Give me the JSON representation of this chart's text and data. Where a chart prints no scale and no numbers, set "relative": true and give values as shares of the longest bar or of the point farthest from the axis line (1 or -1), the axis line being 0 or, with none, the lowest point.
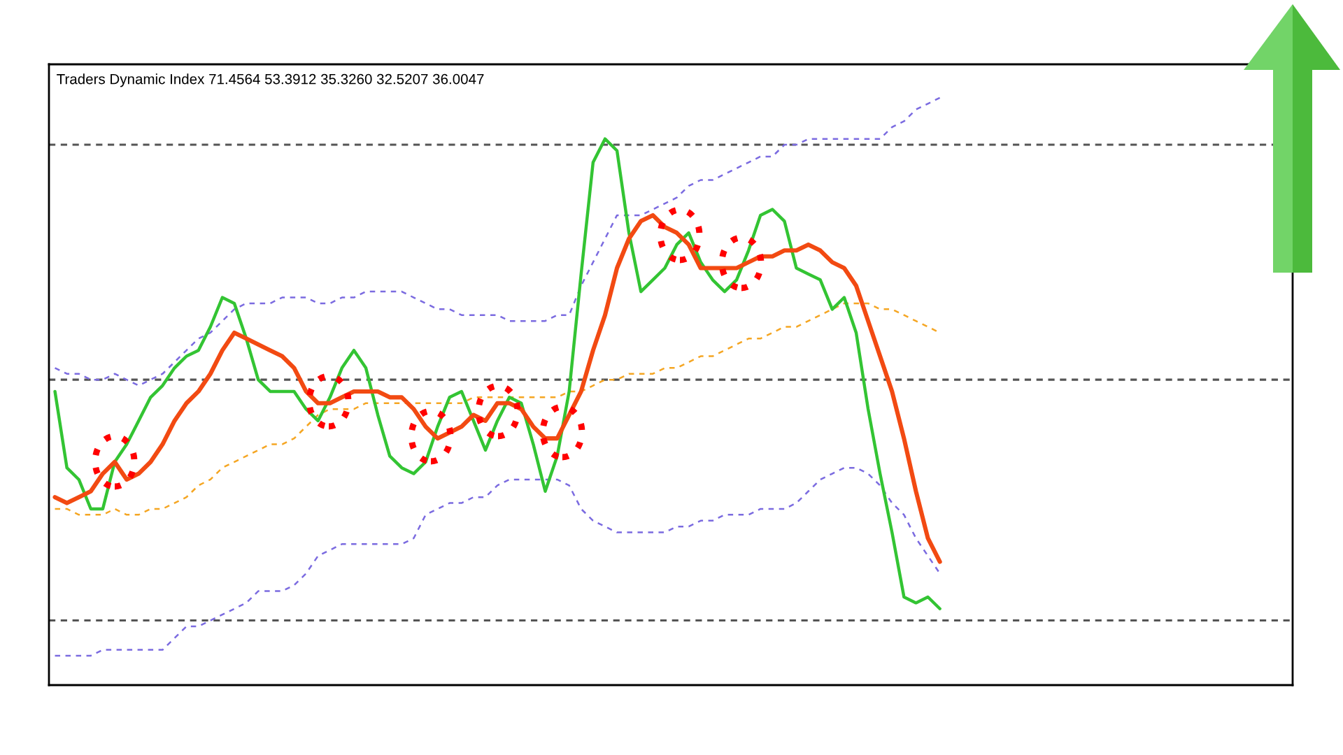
{
  "chart_data": {
    "type": "line",
    "title": "Traders Dynamic Index 71.4564 53.3912 35.3260 32.5207 36.0047",
    "relative": true,
    "categories": [
      null,
      null,
      null,
      null,
      null,
      null,
      null,
      null,
      null,
      null,
      null,
      null,
      null,
      null,
      null,
      null,
      null,
      null,
      null,
      null,
      null,
      null,
      null,
      null,
      null,
      null,
      null,
      null,
      null,
      null,
      null,
      null,
      null,
      null,
      null,
      null,
      null,
      null,
      null,
      null,
      null,
      null,
      null,
      null,
      null,
      null,
      null,
      null,
      null,
      null,
      null,
      null,
      null,
      null,
      null,
      null,
      null,
      null,
      null,
      null,
      null,
      null,
      null,
      null,
      null,
      null,
      null,
      null,
      null,
      null,
      null,
      null,
      null,
      null,
      null,
      null,
      null,
      null,
      null,
      null,
      null,
      null,
      null,
      null,
      null,
      null,
      null,
      null,
      null,
      null,
      null,
      null,
      null,
      null,
      null,
      null,
      null,
      null,
      null,
      null,
      null,
      null,
      null,
      null
    ],
    "ref_lines": [
      {
        "axis": "y",
        "value": 0.92,
        "color": "#555555",
        "line_style": "dashed"
      },
      {
        "axis": "y",
        "value": 0.52,
        "color": "#555555",
        "line_style": "dashed"
      },
      {
        "axis": "y",
        "value": 0.11,
        "color": "#555555",
        "line_style": "dashed"
      }
    ],
    "series": [
      {
        "color": "#7b6be0",
        "line_style": "dashed",
        "values": [
          0.54,
          0.53,
          0.53,
          0.52,
          0.52,
          0.53,
          0.52,
          0.51,
          0.52,
          0.53,
          0.55,
          0.57,
          0.59,
          0.6,
          0.62,
          0.64,
          0.65,
          0.65,
          0.65,
          0.66,
          0.66,
          0.66,
          0.65,
          0.65,
          0.66,
          0.66,
          0.67,
          0.67,
          0.67,
          0.67,
          0.66,
          0.65,
          0.64,
          0.64,
          0.63,
          0.63,
          0.63,
          0.63,
          0.62,
          0.62,
          0.62,
          0.62,
          0.63,
          0.63,
          0.68,
          0.72,
          0.76,
          0.8,
          0.8,
          0.8,
          0.81,
          0.82,
          0.83,
          0.85,
          0.86,
          0.86,
          0.87,
          0.88,
          0.89,
          0.9,
          0.9,
          0.92,
          0.92,
          0.93,
          0.93,
          0.93,
          0.93,
          0.93,
          0.93,
          0.93,
          0.95,
          0.96,
          0.98,
          0.99,
          1.0,
          null,
          null,
          null,
          null,
          null,
          null,
          null,
          null,
          null,
          null,
          null,
          null,
          null,
          null,
          null,
          null,
          null,
          null,
          null,
          null,
          null,
          null,
          null,
          null,
          null,
          null,
          null,
          null,
          null
        ]
      },
      {
        "color": "#7b6be0",
        "line_style": "dashed",
        "values": [
          0.05,
          0.05,
          0.05,
          0.05,
          0.06,
          0.06,
          0.06,
          0.06,
          0.06,
          0.06,
          0.08,
          0.1,
          0.1,
          0.11,
          0.12,
          0.13,
          0.14,
          0.16,
          0.16,
          0.16,
          0.17,
          0.19,
          0.22,
          0.23,
          0.24,
          0.24,
          0.24,
          0.24,
          0.24,
          0.24,
          0.25,
          0.29,
          0.3,
          0.31,
          0.31,
          0.32,
          0.32,
          0.34,
          0.35,
          0.35,
          0.35,
          0.35,
          0.35,
          0.34,
          0.3,
          0.28,
          0.27,
          0.26,
          0.26,
          0.26,
          0.26,
          0.26,
          0.27,
          0.27,
          0.28,
          0.28,
          0.29,
          0.29,
          0.29,
          0.3,
          0.3,
          0.3,
          0.31,
          0.33,
          0.35,
          0.36,
          0.37,
          0.37,
          0.36,
          0.34,
          0.31,
          0.29,
          0.25,
          0.22,
          0.19,
          null,
          null,
          null,
          null,
          null,
          null,
          null,
          null,
          null,
          null,
          null,
          null,
          null,
          null,
          null,
          null,
          null,
          null,
          null,
          null,
          null,
          null,
          null,
          null,
          null,
          null,
          null,
          null,
          null
        ]
      },
      {
        "color": "#f5a623",
        "line_style": "dashed",
        "values": [
          0.3,
          0.3,
          0.29,
          0.29,
          0.29,
          0.3,
          0.29,
          0.29,
          0.3,
          0.3,
          0.31,
          0.32,
          0.34,
          0.35,
          0.37,
          0.38,
          0.39,
          0.4,
          0.41,
          0.41,
          0.42,
          0.44,
          0.46,
          0.47,
          0.47,
          0.47,
          0.48,
          0.48,
          0.48,
          0.48,
          0.48,
          0.48,
          0.48,
          0.48,
          0.48,
          0.49,
          0.49,
          0.49,
          0.49,
          0.49,
          0.49,
          0.49,
          0.49,
          0.5,
          0.5,
          0.51,
          0.52,
          0.52,
          0.53,
          0.53,
          0.53,
          0.54,
          0.54,
          0.55,
          0.56,
          0.56,
          0.57,
          0.58,
          0.59,
          0.59,
          0.6,
          0.61,
          0.61,
          0.62,
          0.63,
          0.64,
          0.65,
          0.65,
          0.65,
          0.64,
          0.64,
          0.63,
          0.62,
          0.61,
          0.6,
          null,
          null,
          null,
          null,
          null,
          null,
          null,
          null,
          null,
          null,
          null,
          null,
          null,
          null,
          null,
          null,
          null,
          null,
          null,
          null,
          null,
          null,
          null,
          null,
          null,
          null,
          null,
          null,
          null
        ]
      },
      {
        "color": "#33c433",
        "line_style": "solid",
        "values": [
          0.5,
          0.37,
          0.35,
          0.3,
          0.3,
          0.38,
          0.41,
          0.45,
          0.49,
          0.51,
          0.54,
          0.56,
          0.57,
          0.61,
          0.66,
          0.65,
          0.59,
          0.52,
          0.5,
          0.5,
          0.5,
          0.47,
          0.45,
          0.49,
          0.54,
          0.57,
          0.54,
          0.46,
          0.39,
          0.37,
          0.36,
          0.38,
          0.44,
          0.49,
          0.5,
          0.45,
          0.4,
          0.45,
          0.49,
          0.48,
          0.41,
          0.33,
          0.39,
          0.5,
          0.7,
          0.89,
          0.93,
          0.91,
          0.77,
          0.67,
          0.69,
          0.71,
          0.75,
          0.77,
          0.72,
          0.69,
          0.67,
          0.69,
          0.74,
          0.8,
          0.81,
          0.79,
          0.71,
          0.7,
          0.69,
          0.64,
          0.66,
          0.6,
          0.47,
          0.36,
          0.26,
          0.15,
          0.14,
          0.15,
          0.13,
          null,
          null,
          null,
          null,
          null,
          null,
          null,
          null,
          null,
          null,
          null,
          null,
          null,
          null,
          null,
          null,
          null,
          null,
          null,
          null,
          null,
          null,
          null,
          null,
          null,
          null,
          null,
          null,
          null
        ]
      },
      {
        "color": "#f24a12",
        "line_style": "solid",
        "values": [
          0.32,
          0.31,
          0.32,
          0.33,
          0.36,
          0.38,
          0.35,
          0.36,
          0.38,
          0.41,
          0.45,
          0.48,
          0.5,
          0.53,
          0.57,
          0.6,
          0.59,
          0.58,
          0.57,
          0.56,
          0.54,
          0.5,
          0.48,
          0.48,
          0.49,
          0.5,
          0.5,
          0.5,
          0.49,
          0.49,
          0.47,
          0.44,
          0.42,
          0.43,
          0.44,
          0.46,
          0.45,
          0.48,
          0.48,
          0.47,
          0.44,
          0.42,
          0.42,
          0.46,
          0.5,
          0.57,
          0.63,
          0.71,
          0.76,
          0.79,
          0.8,
          0.78,
          0.77,
          0.75,
          0.71,
          0.71,
          0.71,
          0.71,
          0.72,
          0.73,
          0.73,
          0.74,
          0.74,
          0.75,
          0.74,
          0.72,
          0.71,
          0.68,
          0.62,
          0.56,
          0.5,
          0.42,
          0.33,
          0.25,
          0.21,
          null,
          null,
          null,
          null,
          null,
          null,
          null,
          null,
          null,
          null,
          null,
          null,
          null,
          null,
          null,
          null,
          null,
          null,
          null,
          null,
          null,
          null,
          null,
          null,
          null,
          null,
          null,
          null,
          null
        ]
      }
    ]
  }
}
